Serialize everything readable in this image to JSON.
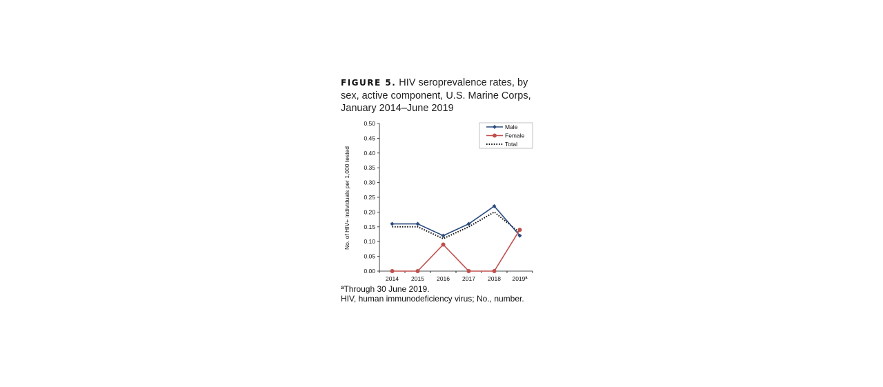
{
  "figure": {
    "label": "FIGURE 5.",
    "title_text": " HIV seroprevalence rates, by sex, active component, U.S. Marine Corps, January 2014–June 2019"
  },
  "footnotes": {
    "line1": "ªThrough 30 June 2019.",
    "line2": "HIV, human immunodeficiency virus; No., number."
  },
  "chart_data": {
    "type": "line",
    "title": "",
    "xlabel": "",
    "ylabel": "No. of HIV+ individuals per 1,000 tested",
    "categories": [
      "2014",
      "2015",
      "2016",
      "2017",
      "2018",
      "2019ª"
    ],
    "ylim": [
      0,
      0.5
    ],
    "yticks": [
      "0.00",
      "0.05",
      "0.10",
      "0.15",
      "0.20",
      "0.25",
      "0.30",
      "0.35",
      "0.40",
      "0.45",
      "0.50"
    ],
    "grid": false,
    "legend_position": "top-right",
    "series": [
      {
        "name": "Male",
        "values": [
          0.16,
          0.16,
          0.12,
          0.16,
          0.22,
          0.12
        ],
        "color": "#2b4a7e",
        "marker": "diamond",
        "style": "solid"
      },
      {
        "name": "Female",
        "values": [
          0.0,
          0.0,
          0.09,
          0.0,
          0.0,
          0.14
        ],
        "color": "#c0504d",
        "marker": "circle",
        "style": "solid"
      },
      {
        "name": "Total",
        "values": [
          0.15,
          0.15,
          0.11,
          0.15,
          0.2,
          0.13
        ],
        "color": "#111111",
        "marker": "none",
        "style": "dotted"
      }
    ]
  }
}
